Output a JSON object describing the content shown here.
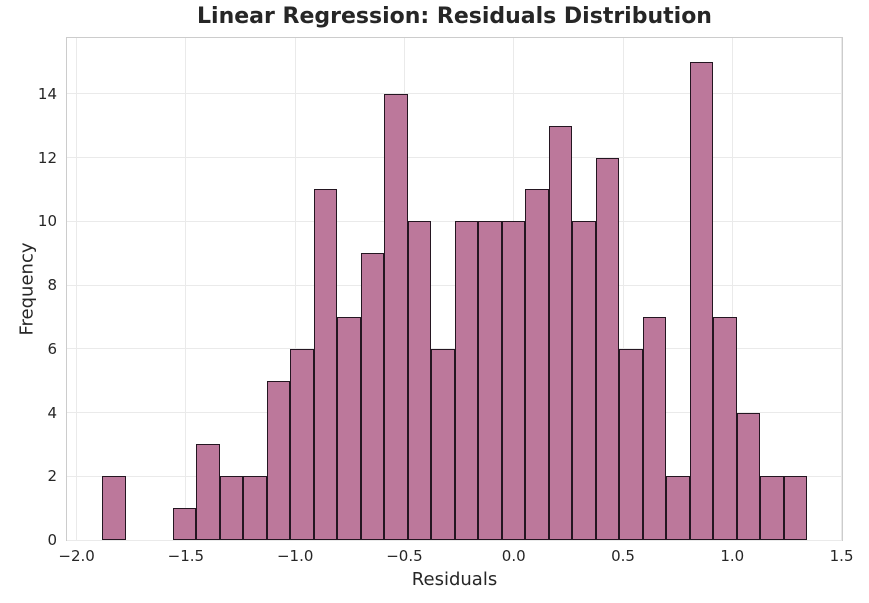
{
  "colors": {
    "background": "#ffffff",
    "text": "#262626",
    "bar_fill": "#bc789b",
    "bar_edge": "#241621",
    "grid": "#eaeaea",
    "spine": "#cccccc"
  },
  "chart_data": {
    "type": "bar",
    "subtype": "histogram",
    "title": "Linear Regression: Residuals Distribution",
    "xlabel": "Residuals",
    "ylabel": "Frequency",
    "bin_start": -1.883,
    "bin_width": 0.1075,
    "counts": [
      2,
      0,
      0,
      1,
      3,
      2,
      2,
      5,
      6,
      11,
      7,
      9,
      14,
      10,
      6,
      10,
      10,
      10,
      11,
      13,
      10,
      12,
      6,
      7,
      2,
      15,
      7,
      4,
      2,
      2
    ],
    "xlim": [
      -2.044,
      1.502
    ],
    "ylim": [
      0,
      15.75
    ],
    "x_ticks": [
      {
        "value": -2.0,
        "label": "−2.0"
      },
      {
        "value": -1.5,
        "label": "−1.5"
      },
      {
        "value": -1.0,
        "label": "−1.0"
      },
      {
        "value": -0.5,
        "label": "−0.5"
      },
      {
        "value": 0.0,
        "label": "0.0"
      },
      {
        "value": 0.5,
        "label": "0.5"
      },
      {
        "value": 1.0,
        "label": "1.0"
      },
      {
        "value": 1.5,
        "label": "1.5"
      }
    ],
    "y_ticks": [
      {
        "value": 0,
        "label": "0"
      },
      {
        "value": 2,
        "label": "2"
      },
      {
        "value": 4,
        "label": "4"
      },
      {
        "value": 6,
        "label": "6"
      },
      {
        "value": 8,
        "label": "8"
      },
      {
        "value": 10,
        "label": "10"
      },
      {
        "value": 12,
        "label": "12"
      },
      {
        "value": 14,
        "label": "14"
      }
    ],
    "grid": true,
    "legend": false
  }
}
